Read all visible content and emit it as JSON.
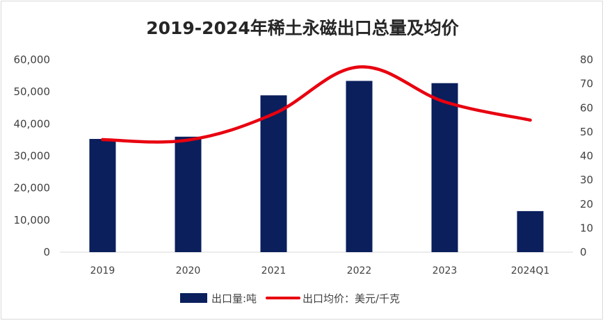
{
  "chart_data": {
    "type": "bar",
    "title": "2019-2024年稀土永磁出口总量及均价",
    "categories": [
      "2019",
      "2020",
      "2021",
      "2022",
      "2023",
      "2024Q1"
    ],
    "series": [
      {
        "name": "出口量:吨",
        "type": "bar",
        "axis": "left",
        "color": "#0a1f5c",
        "values": [
          35300,
          36000,
          48900,
          53400,
          52700,
          12800
        ]
      },
      {
        "name": "出口均价：美元/千克",
        "type": "line",
        "axis": "right",
        "color": "#e8000f",
        "values": [
          46.8,
          46.6,
          57.5,
          77.0,
          62.5,
          54.9
        ]
      }
    ],
    "y_left": {
      "min": 0,
      "max": 60000,
      "ticks": [
        "0",
        "10,000",
        "20,000",
        "30,000",
        "40,000",
        "50,000",
        "60,000"
      ]
    },
    "y_right": {
      "min": 0,
      "max": 80,
      "ticks": [
        "0",
        "10",
        "20",
        "30",
        "40",
        "50",
        "60",
        "70",
        "80"
      ]
    },
    "grid": false,
    "legend_position": "bottom"
  }
}
